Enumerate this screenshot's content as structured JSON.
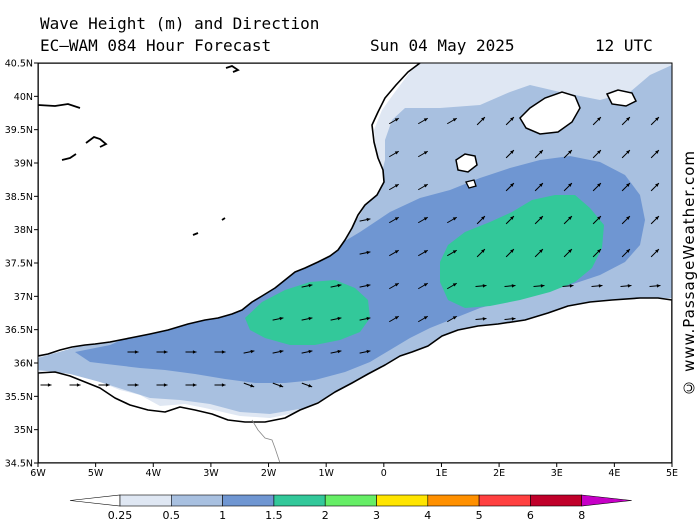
{
  "header": {
    "line1": "Wave Height (m) and Direction",
    "model_line": "EC—WAM 084 Hour Forecast",
    "date": "Sun 04 May 2025",
    "time": "12 UTC"
  },
  "watermark": "© www.PassageWeather.com",
  "axes": {
    "lat_labels": [
      "40.5N",
      "40N",
      "39.5N",
      "39N",
      "38.5N",
      "38N",
      "37.5N",
      "37N",
      "36.5N",
      "36N",
      "35.5N",
      "35N",
      "34.5N"
    ],
    "lon_labels": [
      "6W",
      "5W",
      "4W",
      "3W",
      "2W",
      "1W",
      "0",
      "1E",
      "2E",
      "3E",
      "4E",
      "5E"
    ]
  },
  "colorbar": {
    "labels": [
      "0.25",
      "0.5",
      "1",
      "1.5",
      "2",
      "3",
      "4",
      "5",
      "6",
      "8"
    ],
    "colors": [
      "#dfe7f3",
      "#a8c0e0",
      "#6f96d2",
      "#33c89a",
      "#66ee66",
      "#ffe500",
      "#ff9000",
      "#ff4040",
      "#c0002a",
      "#c600c6"
    ]
  },
  "map_colors": {
    "land": "#ffffff",
    "sea_low": "#dfe7f3",
    "sea_05": "#a8c0e0",
    "sea_1": "#6f96d2",
    "sea_15": "#33c89a",
    "coast": "#000000",
    "arrow": "#000000"
  },
  "wave_direction": {
    "arrow_color": "#000000",
    "note_direction_symbol": "arrow"
  }
}
